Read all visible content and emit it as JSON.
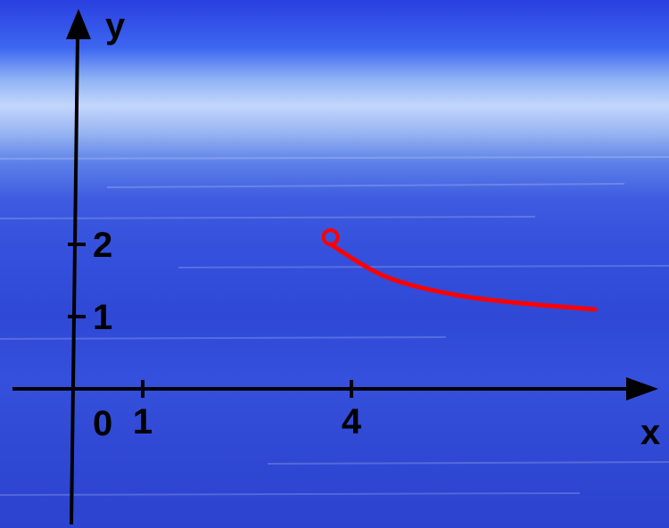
{
  "chart_data": {
    "type": "line",
    "xlabel": "x",
    "ylabel": "y",
    "origin_label": "0",
    "x_ticks": [
      {
        "value": 1,
        "label": "1"
      },
      {
        "value": 4,
        "label": "4"
      }
    ],
    "y_ticks": [
      {
        "value": 1,
        "label": "1"
      },
      {
        "value": 2,
        "label": "2"
      }
    ],
    "xlim": [
      -0.9,
      8.6
    ],
    "ylim": [
      -1.9,
      5.1
    ],
    "series": [
      {
        "color": "#ff0000",
        "open_start_point": [
          3.7,
          2
        ],
        "points": [
          [
            3.7,
            2
          ],
          [
            4.5,
            1.55
          ],
          [
            5.5,
            1.3
          ],
          [
            6.5,
            1.18
          ],
          [
            7.5,
            1.1
          ]
        ]
      }
    ]
  },
  "colors": {
    "axis": "#000000",
    "curve": "#ff0000"
  }
}
